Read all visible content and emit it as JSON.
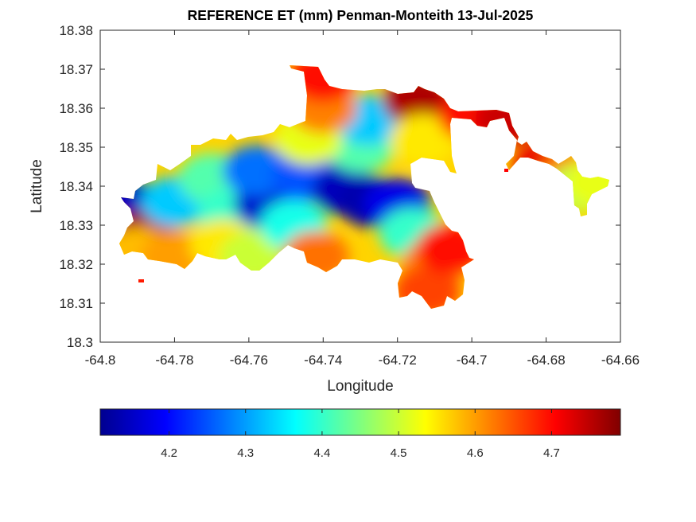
{
  "chart_data": {
    "type": "heatmap",
    "title": "REFERENCE ET (mm) Penman-Monteith 13-Jul-2025",
    "xlabel": "Longitude",
    "ylabel": "Latitude",
    "xlim": [
      -64.8,
      -64.66
    ],
    "ylim": [
      18.3,
      18.38
    ],
    "xticks": [
      -64.8,
      -64.78,
      -64.76,
      -64.74,
      -64.72,
      -64.7,
      -64.68,
      -64.66
    ],
    "xtick_labels": [
      "-64.8",
      "-64.78",
      "-64.76",
      "-64.74",
      "-64.72",
      "-64.7",
      "-64.68",
      "-64.66"
    ],
    "yticks": [
      18.3,
      18.31,
      18.32,
      18.33,
      18.34,
      18.35,
      18.36,
      18.37,
      18.38
    ],
    "ytick_labels": [
      "18.3",
      "18.31",
      "18.32",
      "18.33",
      "18.34",
      "18.35",
      "18.36",
      "18.37",
      "18.38"
    ],
    "colormap": "jet",
    "colorbar": {
      "orientation": "horizontal",
      "location": "bottom",
      "clim": [
        4.11,
        4.79
      ],
      "ticks": [
        4.2,
        4.3,
        4.4,
        4.5,
        4.6,
        4.7
      ],
      "tick_labels": [
        "4.2",
        "4.3",
        "4.4",
        "4.5",
        "4.6",
        "4.7"
      ]
    },
    "regions": [
      {
        "lon": -64.793,
        "lat": 18.3355,
        "et": 4.15
      },
      {
        "lon": -64.788,
        "lat": 18.3275,
        "et": 4.77
      },
      {
        "lon": -64.785,
        "lat": 18.324,
        "et": 4.75
      },
      {
        "lon": -64.79,
        "lat": 18.323,
        "et": 4.58
      },
      {
        "lon": -64.78,
        "lat": 18.322,
        "et": 4.6
      },
      {
        "lon": -64.78,
        "lat": 18.336,
        "et": 4.33
      },
      {
        "lon": -64.77,
        "lat": 18.342,
        "et": 4.42
      },
      {
        "lon": -64.765,
        "lat": 18.333,
        "et": 4.4
      },
      {
        "lon": -64.767,
        "lat": 18.325,
        "et": 4.55
      },
      {
        "lon": -64.755,
        "lat": 18.3355,
        "et": 4.16
      },
      {
        "lon": -64.758,
        "lat": 18.344,
        "et": 4.27
      },
      {
        "lon": -64.759,
        "lat": 18.322,
        "et": 4.5
      },
      {
        "lon": -64.745,
        "lat": 18.3425,
        "et": 4.25
      },
      {
        "lon": -64.748,
        "lat": 18.33,
        "et": 4.38
      },
      {
        "lon": -64.742,
        "lat": 18.322,
        "et": 4.63
      },
      {
        "lon": -64.734,
        "lat": 18.339,
        "et": 4.15
      },
      {
        "lon": -64.727,
        "lat": 18.336,
        "et": 4.14
      },
      {
        "lon": -64.72,
        "lat": 18.3355,
        "et": 4.18
      },
      {
        "lon": -64.716,
        "lat": 18.328,
        "et": 4.4
      },
      {
        "lon": -64.71,
        "lat": 18.32,
        "et": 4.62
      },
      {
        "lon": -64.712,
        "lat": 18.313,
        "et": 4.66
      },
      {
        "lon": -64.706,
        "lat": 18.324,
        "et": 4.7
      },
      {
        "lon": -64.73,
        "lat": 18.35,
        "et": 4.42
      },
      {
        "lon": -64.728,
        "lat": 18.357,
        "et": 4.33
      },
      {
        "lon": -64.744,
        "lat": 18.352,
        "et": 4.52
      },
      {
        "lon": -64.74,
        "lat": 18.36,
        "et": 4.62
      },
      {
        "lon": -64.74,
        "lat": 18.368,
        "et": 4.7
      },
      {
        "lon": -64.715,
        "lat": 18.362,
        "et": 4.76
      },
      {
        "lon": -64.713,
        "lat": 18.352,
        "et": 4.55
      },
      {
        "lon": -64.7,
        "lat": 18.358,
        "et": 4.7
      },
      {
        "lon": -64.69,
        "lat": 18.357,
        "et": 4.74
      },
      {
        "lon": -64.68,
        "lat": 18.345,
        "et": 4.72
      },
      {
        "lon": -64.673,
        "lat": 18.343,
        "et": 4.62
      },
      {
        "lon": -64.67,
        "lat": 18.34,
        "et": 4.48
      },
      {
        "lon": -64.666,
        "lat": 18.341,
        "et": 4.52
      }
    ]
  }
}
